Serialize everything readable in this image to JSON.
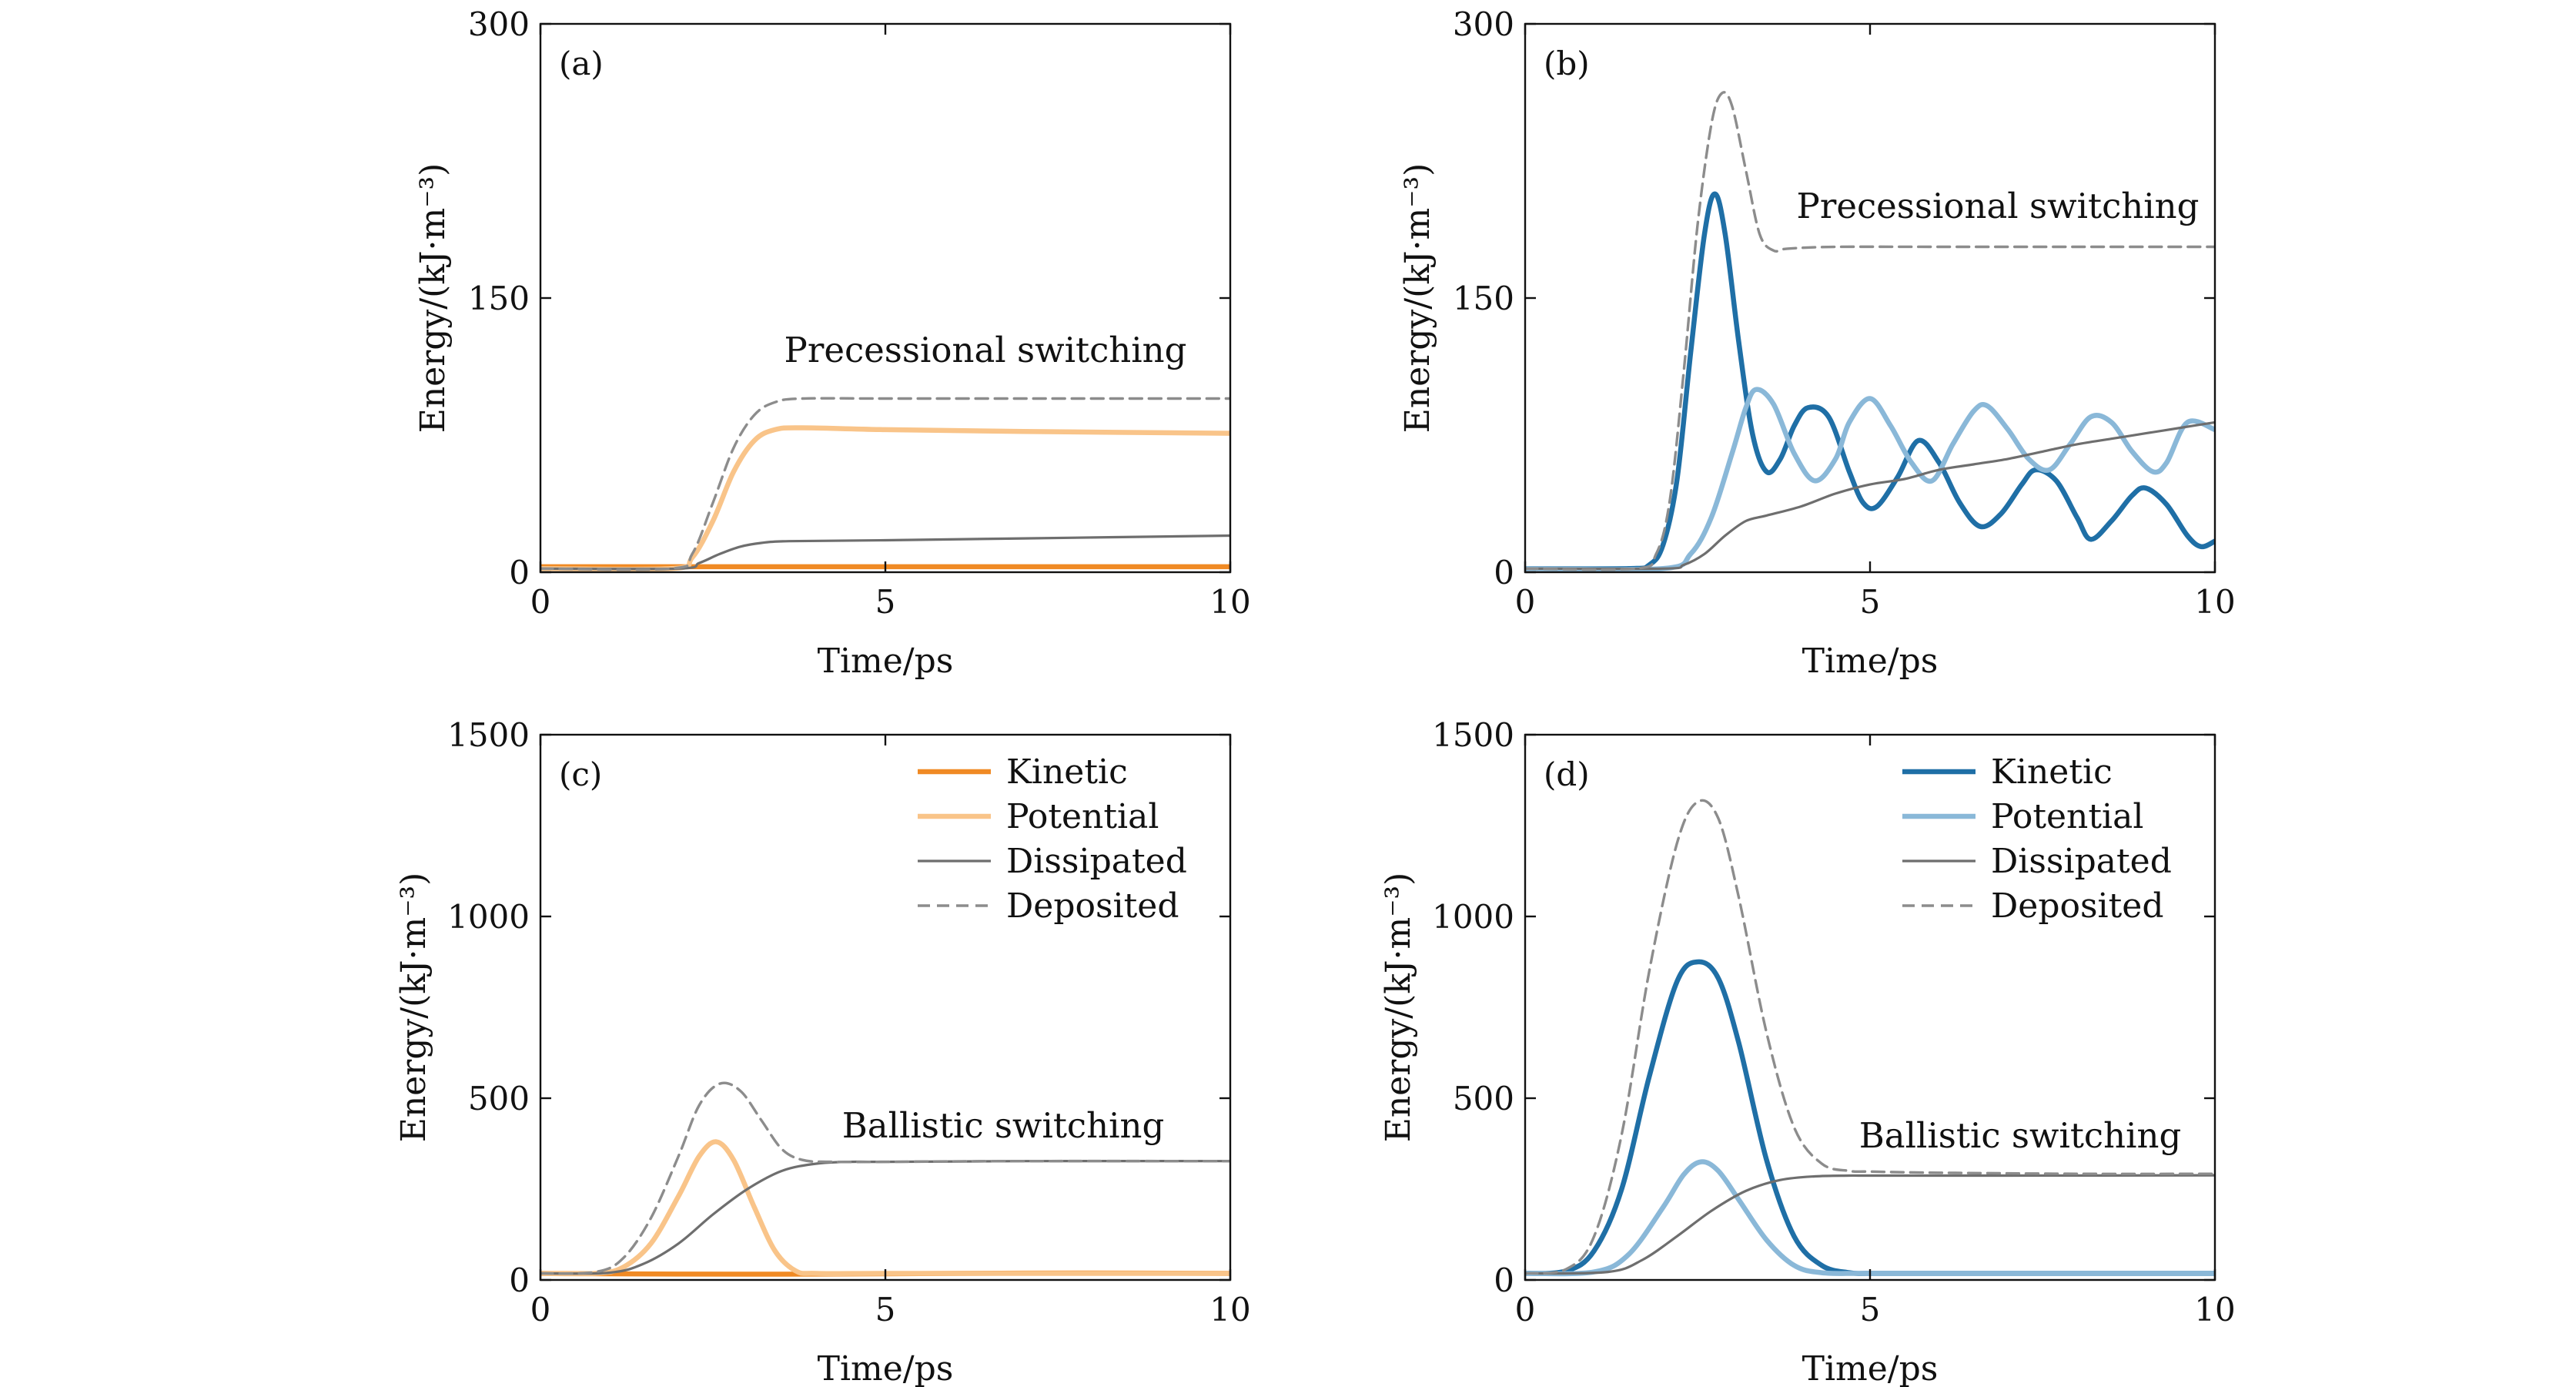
{
  "colors": {
    "orange_kinetic": "#f08a24",
    "orange_potential": "#f9c489",
    "blue_kinetic": "#1f6fa6",
    "blue_potential": "#8ab8d8",
    "dissipated": "#6e6e6e",
    "deposited": "#8c8c8c"
  },
  "chart_data": [
    {
      "panel": "(a)",
      "type": "line",
      "xlabel": "Time/ps",
      "ylabel": "Energy/(kJ·m⁻³)",
      "xlim": [
        0,
        10
      ],
      "ylim": [
        0,
        300
      ],
      "xticks": [
        0,
        5,
        10
      ],
      "yticks": [
        0,
        150,
        300
      ],
      "annotation": "Precessional switching",
      "palette": "orange",
      "series": [
        {
          "name": "Kinetic",
          "style": "kinetic",
          "x": [
            0,
            2,
            2.5,
            3,
            3.5,
            4,
            6,
            8,
            10
          ],
          "y": [
            3,
            3,
            3,
            3,
            3,
            3,
            3,
            3,
            3
          ]
        },
        {
          "name": "Potential",
          "style": "potential",
          "x": [
            0,
            1.9,
            2.2,
            2.5,
            2.8,
            3.1,
            3.4,
            3.8,
            5,
            7,
            10
          ],
          "y": [
            2,
            2,
            8,
            28,
            55,
            72,
            78,
            79,
            78,
            77,
            76
          ]
        },
        {
          "name": "Dissipated",
          "style": "dissipated",
          "x": [
            0,
            2,
            2.3,
            2.6,
            2.9,
            3.2,
            3.6,
            5,
            7,
            10
          ],
          "y": [
            2,
            2,
            5,
            10,
            14,
            16,
            17,
            17.5,
            18.5,
            20
          ]
        },
        {
          "name": "Deposited",
          "style": "deposited",
          "x": [
            0,
            1.9,
            2.2,
            2.5,
            2.8,
            3.1,
            3.4,
            3.8,
            5,
            7,
            10
          ],
          "y": [
            2,
            2,
            10,
            38,
            68,
            86,
            93,
            95,
            95,
            95,
            95
          ]
        }
      ]
    },
    {
      "panel": "(b)",
      "type": "line",
      "xlabel": "Time/ps",
      "ylabel": "Energy/(kJ·m⁻³)",
      "xlim": [
        0,
        10
      ],
      "ylim": [
        0,
        300
      ],
      "xticks": [
        0,
        5,
        10
      ],
      "yticks": [
        0,
        150,
        300
      ],
      "annotation": "Precessional switching",
      "palette": "blue",
      "series": [
        {
          "name": "Kinetic",
          "style": "kinetic",
          "x": [
            0,
            1.5,
            1.8,
            2.0,
            2.2,
            2.4,
            2.6,
            2.75,
            2.9,
            3.1,
            3.3,
            3.5,
            3.7,
            3.9,
            4.1,
            4.4,
            4.7,
            4.9,
            5.1,
            5.4,
            5.7,
            6.0,
            6.3,
            6.6,
            6.9,
            7.2,
            7.4,
            7.7,
            8.0,
            8.2,
            8.5,
            8.8,
            9.0,
            9.3,
            9.6,
            9.8,
            10
          ],
          "y": [
            2,
            2,
            4,
            15,
            50,
            120,
            185,
            207,
            185,
            125,
            75,
            55,
            62,
            80,
            90,
            85,
            55,
            38,
            36,
            52,
            72,
            60,
            38,
            25,
            32,
            48,
            56,
            50,
            30,
            18,
            28,
            42,
            46,
            37,
            20,
            14,
            17
          ]
        },
        {
          "name": "Potential",
          "style": "potential",
          "x": [
            0,
            2.0,
            2.4,
            2.7,
            3.0,
            3.2,
            3.35,
            3.6,
            3.9,
            4.2,
            4.5,
            4.7,
            5.0,
            5.3,
            5.6,
            5.9,
            6.2,
            6.5,
            6.7,
            7.0,
            7.3,
            7.6,
            7.9,
            8.2,
            8.5,
            8.8,
            9.1,
            9.3,
            9.6,
            10
          ],
          "y": [
            2,
            2,
            10,
            30,
            65,
            90,
            100,
            92,
            65,
            50,
            62,
            82,
            95,
            80,
            60,
            50,
            70,
            88,
            91,
            78,
            62,
            56,
            70,
            85,
            82,
            66,
            55,
            60,
            82,
            78
          ]
        },
        {
          "name": "Dissipated",
          "style": "dissipated",
          "x": [
            0,
            2,
            2.3,
            2.6,
            2.9,
            3.2,
            3.5,
            4,
            4.5,
            5,
            5.5,
            6,
            6.5,
            7,
            7.5,
            8,
            8.5,
            9,
            9.5,
            10
          ],
          "y": [
            2,
            2,
            4,
            10,
            20,
            28,
            31,
            36,
            43,
            48,
            51,
            56,
            59,
            62,
            66,
            70,
            73,
            76,
            79,
            82
          ]
        },
        {
          "name": "Deposited",
          "style": "deposited",
          "x": [
            0,
            1.6,
            1.9,
            2.1,
            2.3,
            2.5,
            2.7,
            2.85,
            3.0,
            3.2,
            3.4,
            3.6,
            3.8,
            4.5,
            6,
            8,
            10
          ],
          "y": [
            2,
            2,
            10,
            40,
            110,
            190,
            245,
            262,
            255,
            220,
            185,
            176,
            177,
            178,
            178,
            178,
            178
          ]
        }
      ]
    },
    {
      "panel": "(c)",
      "type": "line",
      "xlabel": "Time/ps",
      "ylabel": "Energy/(kJ·m⁻³)",
      "xlim": [
        0,
        10
      ],
      "ylim": [
        0,
        1500
      ],
      "xticks": [
        0,
        5,
        10
      ],
      "yticks": [
        0,
        500,
        1000,
        1500
      ],
      "annotation": "Ballistic switching",
      "palette": "orange",
      "legend": [
        "Kinetic",
        "Potential",
        "Dissipated",
        "Deposited"
      ],
      "series": [
        {
          "name": "Kinetic",
          "style": "kinetic",
          "x": [
            0,
            2,
            4,
            6,
            8,
            10
          ],
          "y": [
            18,
            16,
            16,
            18,
            19,
            18
          ]
        },
        {
          "name": "Potential",
          "style": "potential",
          "x": [
            0,
            0.8,
            1.2,
            1.6,
            2.0,
            2.3,
            2.55,
            2.8,
            3.1,
            3.4,
            3.7,
            4.0,
            5,
            7,
            10
          ],
          "y": [
            18,
            18,
            35,
            100,
            230,
            340,
            380,
            330,
            200,
            80,
            25,
            18,
            18,
            18,
            18
          ]
        },
        {
          "name": "Dissipated",
          "style": "dissipated",
          "x": [
            0,
            1.0,
            1.5,
            2.0,
            2.5,
            3.0,
            3.5,
            4.0,
            4.5,
            5,
            7,
            10
          ],
          "y": [
            18,
            20,
            45,
            100,
            180,
            250,
            300,
            320,
            325,
            325,
            327,
            327
          ]
        },
        {
          "name": "Deposited",
          "style": "deposited",
          "x": [
            0,
            0.8,
            1.2,
            1.6,
            2.0,
            2.3,
            2.6,
            2.9,
            3.2,
            3.5,
            3.8,
            4.2,
            5,
            7,
            10
          ],
          "y": [
            18,
            22,
            60,
            170,
            340,
            480,
            540,
            520,
            440,
            360,
            330,
            325,
            325,
            327,
            327
          ]
        }
      ]
    },
    {
      "panel": "(d)",
      "type": "line",
      "xlabel": "Time/ps",
      "ylabel": "Energy/(kJ·m⁻³)",
      "xlim": [
        0,
        10
      ],
      "ylim": [
        0,
        1500
      ],
      "xticks": [
        0,
        5,
        10
      ],
      "yticks": [
        0,
        500,
        1000,
        1500
      ],
      "annotation": "Ballistic switching",
      "palette": "blue",
      "legend": [
        "Kinetic",
        "Potential",
        "Dissipated",
        "Deposited"
      ],
      "series": [
        {
          "name": "Kinetic",
          "style": "kinetic",
          "x": [
            0,
            0.6,
            1.0,
            1.4,
            1.8,
            2.2,
            2.5,
            2.8,
            3.1,
            3.5,
            3.9,
            4.3,
            4.7,
            5.0,
            6,
            8,
            10
          ],
          "y": [
            18,
            25,
            80,
            250,
            560,
            820,
            875,
            830,
            650,
            330,
            120,
            40,
            20,
            18,
            18,
            18,
            18
          ]
        },
        {
          "name": "Potential",
          "style": "potential",
          "x": [
            0,
            1.0,
            1.5,
            2.0,
            2.3,
            2.55,
            2.8,
            3.1,
            3.5,
            3.9,
            4.3,
            5,
            7,
            10
          ],
          "y": [
            18,
            22,
            70,
            200,
            290,
            325,
            300,
            220,
            110,
            40,
            20,
            18,
            18,
            18
          ]
        },
        {
          "name": "Dissipated",
          "style": "dissipated",
          "x": [
            0,
            1.2,
            1.7,
            2.2,
            2.7,
            3.2,
            3.7,
            4.2,
            4.7,
            5,
            7,
            10
          ],
          "y": [
            18,
            22,
            55,
            120,
            190,
            245,
            275,
            285,
            287,
            287,
            287,
            288
          ]
        },
        {
          "name": "Deposited",
          "style": "deposited",
          "x": [
            0,
            0.6,
            1.0,
            1.4,
            1.8,
            2.2,
            2.5,
            2.8,
            3.1,
            3.5,
            3.9,
            4.3,
            4.7,
            5.0,
            6,
            8,
            10
          ],
          "y": [
            18,
            30,
            120,
            400,
            850,
            1200,
            1315,
            1270,
            1050,
            680,
            420,
            320,
            300,
            298,
            295,
            292,
            292
          ]
        }
      ]
    }
  ]
}
